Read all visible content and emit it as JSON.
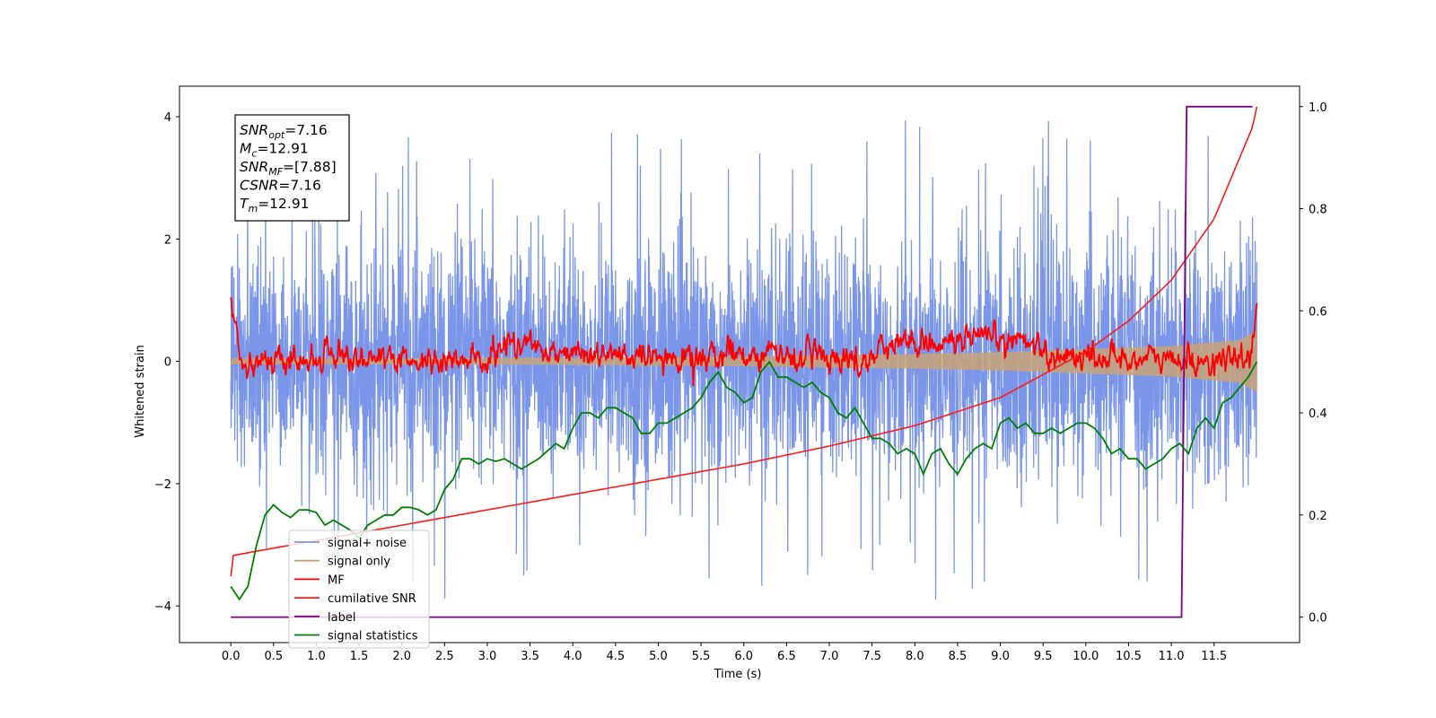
{
  "chart_data": {
    "type": "line",
    "title": "",
    "xlabel": "Time (s)",
    "ylabel": "Whitened strain",
    "ylabel_right": "",
    "xlim": [
      -0.6,
      12.5
    ],
    "ylim": [
      -4.6,
      4.5
    ],
    "ylim_right": [
      -0.05,
      1.04
    ],
    "x_ticks": [
      "0.0",
      "0.5",
      "1.0",
      "1.5",
      "2.0",
      "2.5",
      "3.0",
      "3.5",
      "4.0",
      "4.5",
      "5.0",
      "5.5",
      "6.0",
      "6.5",
      "7.0",
      "7.5",
      "8.0",
      "8.5",
      "9.0",
      "9.5",
      "10.0",
      "10.5",
      "11.0",
      "11.5"
    ],
    "y_ticks": [
      "4",
      "2",
      "0",
      "−2",
      "−4"
    ],
    "y_ticks_right": [
      "1.0",
      "0.8",
      "0.6",
      "0.4",
      "0.2",
      "0.0"
    ],
    "grid": false,
    "legend_position": "lower-left",
    "legend": [
      "signal+ noise",
      "signal only",
      "MF",
      "cumilative SNR",
      "label",
      "signal statistics"
    ],
    "colors": {
      "signal_noise": "#7b96e8",
      "signal_only": "#c8a277",
      "mf": "#ff0000",
      "cumulative_snr": "#ff1a1a",
      "label": "#800080",
      "signal_statistics": "#008000"
    },
    "annotation": {
      "lines": [
        {
          "base": "SNR",
          "sub": "opt",
          "rest": "=7.16"
        },
        {
          "base": "M",
          "sub": "c",
          "rest": "=12.91"
        },
        {
          "base": "SNR",
          "sub": "MF",
          "rest": "=[7.88]"
        },
        {
          "base": "CSNR",
          "sub": "",
          "rest": "=7.16"
        },
        {
          "base": "T",
          "sub": "m",
          "rest": "=12.91"
        }
      ]
    },
    "series": [
      {
        "name": "signal+ noise",
        "axis": "left",
        "x_range": [
          0,
          12.0
        ],
        "amplitude_typical": [
          -2.0,
          2.2
        ],
        "amplitude_extreme": [
          -4.1,
          4.05
        ]
      },
      {
        "name": "signal only",
        "axis": "left",
        "x_range": [
          0,
          12.0
        ],
        "envelope": {
          "x": [
            0,
            2,
            4,
            6,
            7,
            8,
            9,
            10,
            11,
            11.8,
            12.0
          ],
          "amp": [
            0.05,
            0.05,
            0.06,
            0.08,
            0.1,
            0.12,
            0.15,
            0.2,
            0.25,
            0.35,
            0.5
          ]
        }
      },
      {
        "name": "MF",
        "axis": "left",
        "x_range": [
          0,
          12.0
        ],
        "x": [
          0.0,
          0.05,
          0.1,
          0.3,
          1.0,
          1.1,
          1.3,
          2.0,
          3.0,
          3.2,
          5.0,
          6.0,
          7.5,
          7.6,
          9.45,
          9.5,
          11.5,
          11.9,
          11.95,
          12.0
        ],
        "y": [
          1.0,
          0.6,
          0.1,
          0.0,
          0.0,
          0.25,
          0.1,
          0.0,
          0.0,
          0.3,
          0.0,
          0.15,
          0.0,
          0.3,
          0.35,
          0.1,
          0.0,
          0.0,
          0.4,
          0.95
        ],
        "noise_amplitude": 0.12
      },
      {
        "name": "cumilative SNR",
        "axis": "right",
        "x": [
          0,
          0.002,
          1,
          2,
          3,
          4,
          5,
          6,
          7,
          8,
          9,
          10,
          10.5,
          11,
          11.5,
          11.95,
          12.0
        ],
        "y": [
          0.08,
          0.12,
          0.15,
          0.18,
          0.21,
          0.24,
          0.27,
          0.3,
          0.335,
          0.375,
          0.43,
          0.52,
          0.58,
          0.66,
          0.78,
          0.96,
          1.0
        ]
      },
      {
        "name": "label",
        "axis": "right",
        "x": [
          0,
          11.12,
          11.18,
          11.95
        ],
        "y": [
          0.0,
          0.0,
          1.0,
          1.0
        ]
      },
      {
        "name": "signal statistics",
        "axis": "right",
        "x": [
          0,
          0.1,
          0.2,
          0.3,
          0.4,
          0.5,
          0.6,
          0.7,
          0.8,
          0.9,
          1.0,
          1.1,
          1.2,
          1.3,
          1.4,
          1.5,
          1.6,
          1.7,
          1.8,
          1.9,
          2.0,
          2.1,
          2.2,
          2.3,
          2.4,
          2.5,
          2.6,
          2.7,
          2.8,
          2.9,
          3.0,
          3.1,
          3.2,
          3.3,
          3.4,
          3.5,
          3.6,
          3.7,
          3.8,
          3.9,
          4.0,
          4.1,
          4.2,
          4.3,
          4.4,
          4.5,
          4.6,
          4.7,
          4.8,
          4.9,
          5.0,
          5.1,
          5.2,
          5.3,
          5.4,
          5.5,
          5.6,
          5.7,
          5.8,
          5.9,
          6.0,
          6.1,
          6.2,
          6.3,
          6.4,
          6.5,
          6.6,
          6.7,
          6.8,
          6.9,
          7.0,
          7.1,
          7.2,
          7.3,
          7.4,
          7.5,
          7.6,
          7.7,
          7.8,
          7.9,
          8.0,
          8.1,
          8.2,
          8.3,
          8.4,
          8.5,
          8.6,
          8.7,
          8.8,
          8.9,
          9.0,
          9.1,
          9.2,
          9.3,
          9.4,
          9.5,
          9.6,
          9.7,
          9.8,
          9.9,
          10.0,
          10.1,
          10.2,
          10.3,
          10.4,
          10.5,
          10.6,
          10.7,
          10.8,
          10.9,
          11.0,
          11.1,
          11.2,
          11.3,
          11.4,
          11.5,
          11.6,
          11.7,
          11.8,
          11.9,
          12.0
        ],
        "y": [
          0.06,
          0.035,
          0.06,
          0.14,
          0.2,
          0.22,
          0.205,
          0.195,
          0.21,
          0.21,
          0.205,
          0.18,
          0.19,
          0.18,
          0.17,
          0.155,
          0.18,
          0.19,
          0.2,
          0.2,
          0.215,
          0.215,
          0.21,
          0.2,
          0.21,
          0.25,
          0.27,
          0.31,
          0.31,
          0.3,
          0.31,
          0.305,
          0.31,
          0.3,
          0.29,
          0.3,
          0.31,
          0.325,
          0.34,
          0.33,
          0.37,
          0.4,
          0.4,
          0.39,
          0.41,
          0.41,
          0.4,
          0.39,
          0.36,
          0.36,
          0.38,
          0.38,
          0.39,
          0.4,
          0.41,
          0.43,
          0.46,
          0.48,
          0.45,
          0.44,
          0.42,
          0.43,
          0.48,
          0.5,
          0.47,
          0.47,
          0.46,
          0.45,
          0.46,
          0.44,
          0.43,
          0.4,
          0.39,
          0.41,
          0.38,
          0.35,
          0.35,
          0.34,
          0.32,
          0.33,
          0.32,
          0.28,
          0.32,
          0.33,
          0.3,
          0.28,
          0.31,
          0.33,
          0.34,
          0.33,
          0.38,
          0.39,
          0.37,
          0.38,
          0.36,
          0.36,
          0.37,
          0.36,
          0.37,
          0.38,
          0.38,
          0.37,
          0.35,
          0.32,
          0.33,
          0.31,
          0.31,
          0.29,
          0.3,
          0.31,
          0.33,
          0.34,
          0.32,
          0.37,
          0.39,
          0.37,
          0.42,
          0.43,
          0.45,
          0.47,
          0.5
        ]
      }
    ]
  }
}
